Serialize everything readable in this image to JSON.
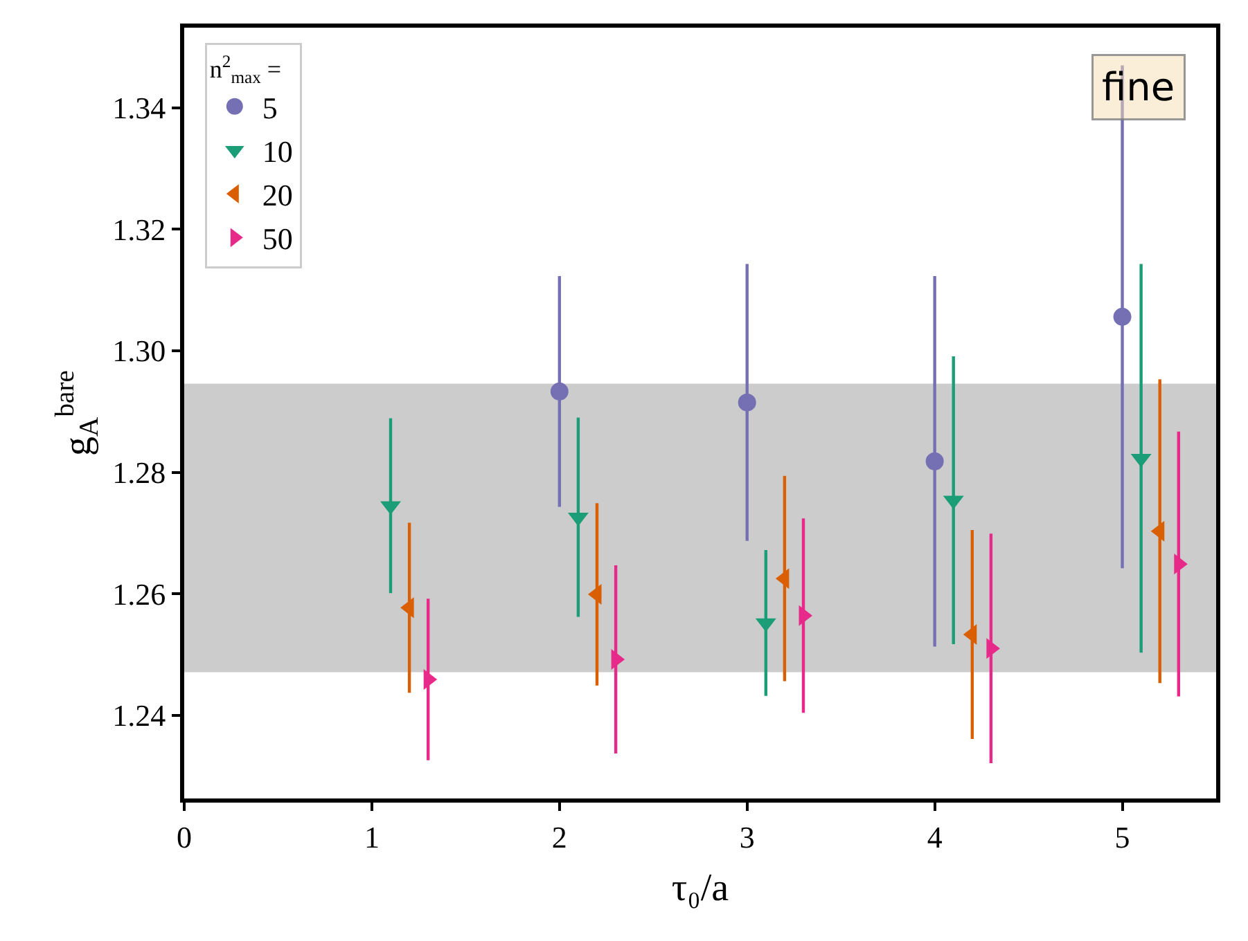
{
  "chart_data": {
    "type": "scatter",
    "xlabel": "τ₀/a",
    "ylabel": "g$_{A}$$^{bare}$",
    "legend_title": "n$^{2}$$_{max}$ =",
    "annotations": [
      "fine"
    ],
    "series": [
      {
        "name": "5",
        "color": "#7570b3",
        "marker": "circle",
        "x": [
          2,
          3,
          4,
          5
        ],
        "values": [
          1.2933,
          1.2915,
          1.2818,
          1.3056
        ],
        "errors": [
          0.019,
          0.0228,
          0.0305,
          0.0414
        ]
      },
      {
        "name": "10",
        "color": "#1b9e77",
        "marker": "triangle-down",
        "x": [
          1.1,
          2.1,
          3.1,
          4.1,
          5.1
        ],
        "values": [
          1.2745,
          1.2726,
          1.2552,
          1.2754,
          1.2823
        ],
        "errors": [
          0.0144,
          0.0164,
          0.012,
          0.0237,
          0.032
        ]
      },
      {
        "name": "20",
        "color": "#d95f02",
        "marker": "triangle-left",
        "x": [
          1.2,
          2.2,
          3.2,
          4.2,
          5.2
        ],
        "values": [
          1.2577,
          1.2599,
          1.2625,
          1.2533,
          1.2703
        ],
        "errors": [
          0.014,
          0.015,
          0.0169,
          0.0172,
          0.025
        ]
      },
      {
        "name": "50",
        "color": "#e7298a",
        "marker": "triangle-right",
        "x": [
          1.3,
          2.3,
          3.3,
          4.3,
          5.3
        ],
        "values": [
          1.2459,
          1.2492,
          1.2564,
          1.251,
          1.2649
        ],
        "errors": [
          0.0133,
          0.0155,
          0.016,
          0.0189,
          0.0218
        ]
      }
    ],
    "bands": [
      {
        "axis": "y",
        "from": 1.2471,
        "to": 1.2946,
        "color": "#cccccc"
      }
    ],
    "xlim": [
      0,
      5.5
    ],
    "xticks": [
      0,
      1,
      2,
      3,
      4,
      5
    ],
    "ylim": [
      1.2263,
      1.3532
    ],
    "yticks": [
      {
        "value": 1.24,
        "label": "1.24"
      },
      {
        "value": 1.26,
        "label": "1.26"
      },
      {
        "value": 1.28,
        "label": "1.28"
      },
      {
        "value": 1.3,
        "label": "1.30"
      },
      {
        "value": 1.32,
        "label": "1.32"
      },
      {
        "value": 1.34,
        "label": "1.34"
      }
    ],
    "grid": false,
    "legend": "top left"
  }
}
